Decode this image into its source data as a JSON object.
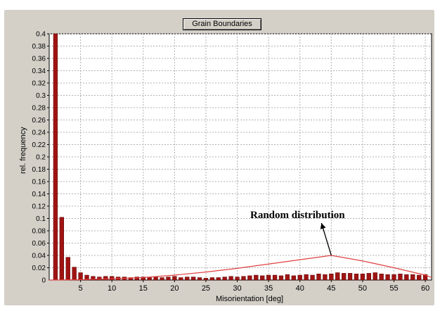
{
  "chart_data": {
    "type": "bar",
    "title": "Grain Boundaries",
    "xlabel": "Misorientation [deg]",
    "ylabel": "rel. frequency",
    "xlim": [
      0,
      61
    ],
    "ylim": [
      0,
      0.4
    ],
    "x_ticks": [
      5,
      10,
      15,
      20,
      25,
      30,
      35,
      40,
      45,
      50,
      55,
      60
    ],
    "y_ticks": [
      0.02,
      0.04,
      0.06,
      0.08,
      0.1,
      0.12,
      0.14,
      0.16,
      0.18,
      0.2,
      0.22,
      0.24,
      0.26,
      0.28,
      0.3,
      0.32,
      0.34,
      0.36,
      0.38,
      0.4
    ],
    "grid": true,
    "bar_color": "#a01414",
    "series": [
      {
        "x": [
          1,
          2,
          3,
          4,
          5,
          6,
          7,
          8,
          9,
          10,
          11,
          12,
          13,
          14,
          15,
          16,
          17,
          18,
          19,
          20,
          21,
          22,
          23,
          24,
          25,
          26,
          27,
          28,
          29,
          30,
          31,
          32,
          33,
          34,
          35,
          36,
          37,
          38,
          39,
          40,
          41,
          42,
          43,
          44,
          45,
          46,
          47,
          48,
          49,
          50,
          51,
          52,
          53,
          54,
          55,
          56,
          57,
          58,
          59,
          60
        ],
        "values": [
          0.4,
          0.102,
          0.037,
          0.021,
          0.012,
          0.008,
          0.006,
          0.005,
          0.006,
          0.006,
          0.005,
          0.005,
          0.004,
          0.005,
          0.005,
          0.004,
          0.005,
          0.004,
          0.005,
          0.006,
          0.004,
          0.005,
          0.005,
          0.004,
          0.003,
          0.004,
          0.004,
          0.005,
          0.006,
          0.005,
          0.006,
          0.007,
          0.008,
          0.007,
          0.008,
          0.008,
          0.007,
          0.009,
          0.007,
          0.008,
          0.009,
          0.008,
          0.01,
          0.009,
          0.01,
          0.012,
          0.011,
          0.011,
          0.01,
          0.01,
          0.011,
          0.012,
          0.01,
          0.009,
          0.009,
          0.01,
          0.009,
          0.009,
          0.008,
          0.009
        ]
      }
    ],
    "reference_line": {
      "label": "Random distribution",
      "color": "#e04040",
      "x": [
        0,
        5,
        10,
        15,
        20,
        25,
        30,
        35,
        40,
        45,
        50,
        55,
        60,
        61
      ],
      "y": [
        0,
        0.0005,
        0.002,
        0.004,
        0.008,
        0.013,
        0.019,
        0.026,
        0.033,
        0.04,
        0.031,
        0.02,
        0.008,
        0.004
      ]
    },
    "annotation": {
      "text": "Random distribution",
      "points_to": {
        "x": 45,
        "y": 0.04
      }
    }
  }
}
